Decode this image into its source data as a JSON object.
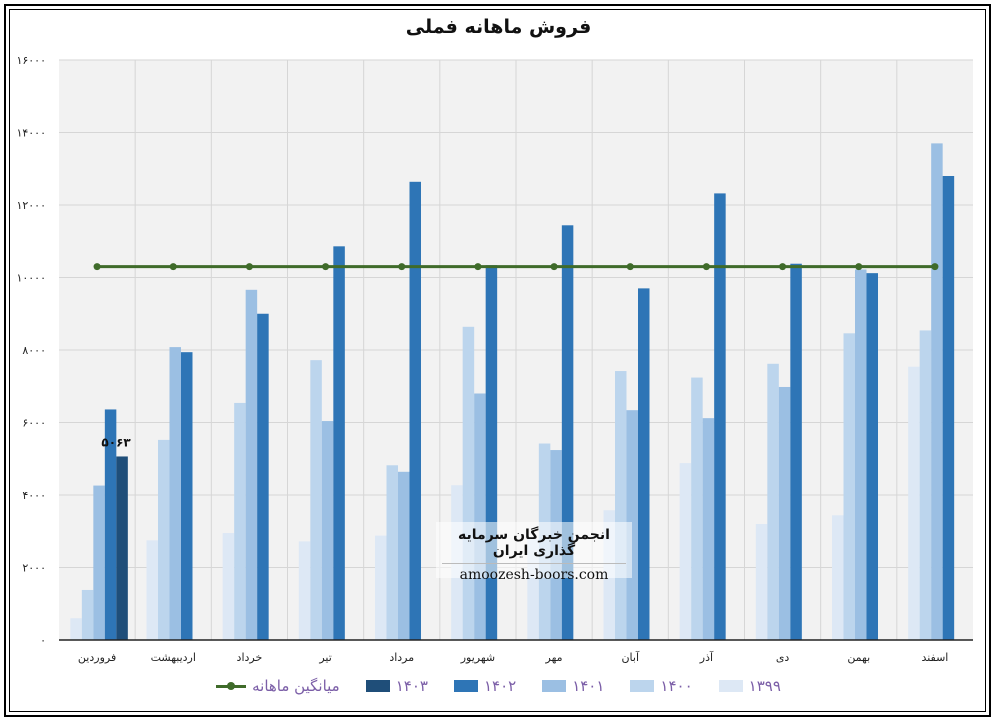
{
  "chart_data": {
    "type": "bar",
    "title": "فروش ماهانه فملی",
    "categories": [
      "فروردین",
      "اردیبهشت",
      "خرداد",
      "تیر",
      "مرداد",
      "شهریور",
      "مهر",
      "آبان",
      "آذر",
      "دی",
      "بهمن",
      "اسفند"
    ],
    "y_ticks": [
      "۰",
      "۲۰۰۰",
      "۴۰۰۰",
      "۶۰۰۰",
      "۸۰۰۰",
      "۱۰۰۰۰",
      "۱۲۰۰۰",
      "۱۴۰۰۰",
      "۱۶۰۰۰"
    ],
    "ylim": [
      0,
      16000
    ],
    "grid": true,
    "legend_position": "bottom",
    "series": [
      {
        "name": "۱۳۹۹",
        "color": "#dde8f5",
        "values": [
          600,
          2750,
          2950,
          2720,
          2880,
          4270,
          2780,
          3580,
          4880,
          3200,
          3440,
          7540
        ]
      },
      {
        "name": "۱۴۰۰",
        "color": "#bcd5ed",
        "values": [
          1380,
          5520,
          6540,
          7720,
          4820,
          8640,
          5420,
          7420,
          7240,
          7620,
          8460,
          8540
        ]
      },
      {
        "name": "۱۴۰۱",
        "color": "#9bbfe3",
        "values": [
          4260,
          8080,
          9660,
          6040,
          4640,
          6800,
          5240,
          6340,
          6120,
          6980,
          10220,
          13700
        ]
      },
      {
        "name": "۱۴۰۲",
        "color": "#2e75b6",
        "values": [
          6360,
          7940,
          9000,
          10860,
          12640,
          10340,
          11440,
          9700,
          12320,
          10380,
          10120,
          12800
        ]
      },
      {
        "name": "۱۴۰۳",
        "color": "#1f4e79",
        "values": [
          5063,
          null,
          null,
          null,
          null,
          null,
          null,
          null,
          null,
          null,
          null,
          null
        ]
      }
    ],
    "average_line": {
      "name": "میانگین ماهانه",
      "color": "#3f6b2a",
      "value": 10300
    },
    "data_labels": [
      {
        "series": "۱۴۰۳",
        "category": "فروردین",
        "text": "۵۰۶۳"
      }
    ]
  },
  "watermark": {
    "title": "انجمن خبرگان سرمایه گذاری ایران",
    "url": "amoozesh-boors.com"
  }
}
